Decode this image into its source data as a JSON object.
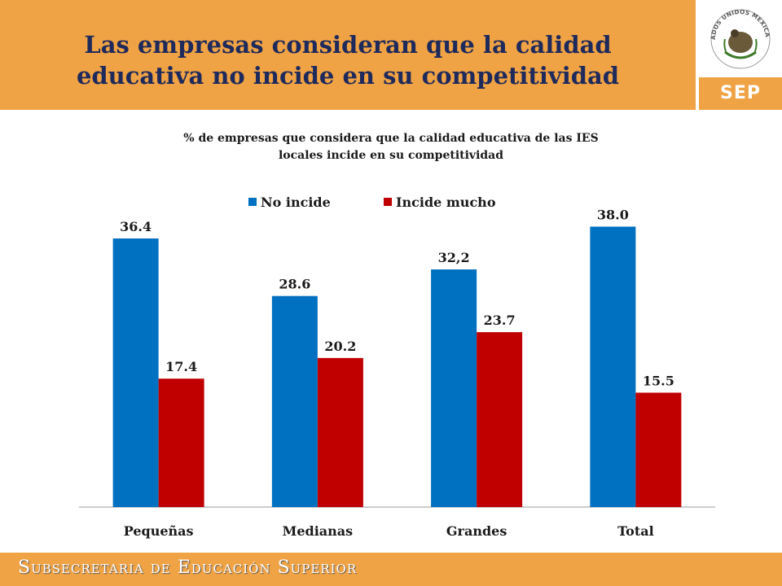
{
  "header": {
    "title_line1": "Las empresas consideran que la calidad",
    "title_line2": "educativa no incide en su competitividad",
    "seal_text": "ESTADOS UNIDOS MEXICANOS",
    "logo_text": "SEP"
  },
  "footer": {
    "text": "Subsecretaria de Educación Superior"
  },
  "colors": {
    "band": "#F0A344",
    "title": "#1f2a5c",
    "series_no_incide": "#0070C0",
    "series_incide_mucho": "#C00000"
  },
  "chart_data": {
    "type": "bar",
    "title_line1": "% de empresas que considera que la calidad educativa de las IES",
    "title_line2": "locales incide en su competitividad",
    "categories": [
      "Pequeñas",
      "Medianas",
      "Grandes",
      "Total"
    ],
    "series": [
      {
        "name": "No incide",
        "values": [
          36.4,
          28.6,
          32.2,
          38.0
        ],
        "labels": [
          "36.4",
          "28.6",
          "32,2",
          "38.0"
        ]
      },
      {
        "name": "Incide mucho",
        "values": [
          17.4,
          20.2,
          23.7,
          15.5
        ],
        "labels": [
          "17.4",
          "20.2",
          "23.7",
          "15.5"
        ]
      }
    ],
    "ylim": [
      0,
      45
    ],
    "grid": false,
    "legend": "top-center",
    "xlabel": "",
    "ylabel": ""
  }
}
